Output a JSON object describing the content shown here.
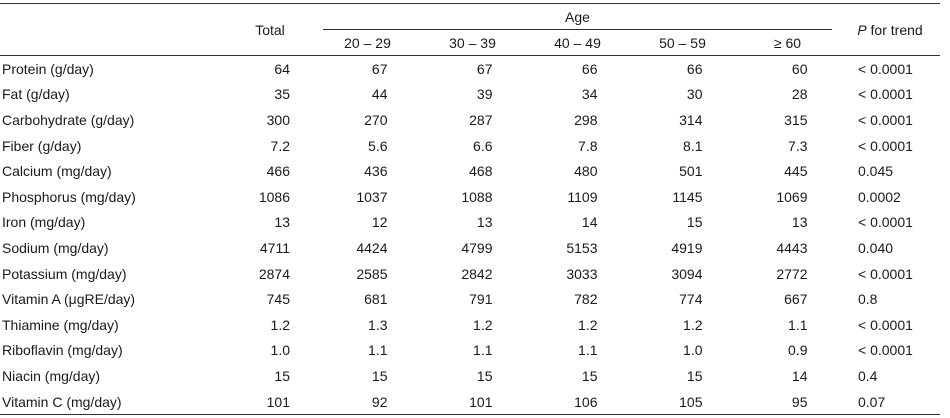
{
  "header": {
    "total": "Total",
    "age": "Age",
    "p": "P",
    "for_trend": " for trend",
    "age_groups": [
      "20 – 29",
      "30 – 39",
      "40 – 49",
      "50 – 59",
      "≥ 60"
    ]
  },
  "rows": [
    {
      "name": "Protein (g/day)",
      "total": "64",
      "a1": "67",
      "a2": "67",
      "a3": "66",
      "a4": "66",
      "a5": "60",
      "trend": "< 0.0001"
    },
    {
      "name": "Fat (g/day)",
      "total": "35",
      "a1": "44",
      "a2": "39",
      "a3": "34",
      "a4": "30",
      "a5": "28",
      "trend": "< 0.0001"
    },
    {
      "name": "Carbohydrate (g/day)",
      "total": "300",
      "a1": "270",
      "a2": "287",
      "a3": "298",
      "a4": "314",
      "a5": "315",
      "trend": "< 0.0001"
    },
    {
      "name": "Fiber (g/day)",
      "total": "7.2",
      "a1": "5.6",
      "a2": "6.6",
      "a3": "7.8",
      "a4": "8.1",
      "a5": "7.3",
      "trend": "< 0.0001"
    },
    {
      "name": "Calcium (mg/day)",
      "total": "466",
      "a1": "436",
      "a2": "468",
      "a3": "480",
      "a4": "501",
      "a5": "445",
      "trend": "0.045"
    },
    {
      "name": "Phosphorus (mg/day)",
      "total": "1086",
      "a1": "1037",
      "a2": "1088",
      "a3": "1109",
      "a4": "1145",
      "a5": "1069",
      "trend": "0.0002"
    },
    {
      "name": "Iron (mg/day)",
      "total": "13",
      "a1": "12",
      "a2": "13",
      "a3": "14",
      "a4": "15",
      "a5": "13",
      "trend": "< 0.0001"
    },
    {
      "name": "Sodium (mg/day)",
      "total": "4711",
      "a1": "4424",
      "a2": "4799",
      "a3": "5153",
      "a4": "4919",
      "a5": "4443",
      "trend": "0.040"
    },
    {
      "name": "Potassium (mg/day)",
      "total": "2874",
      "a1": "2585",
      "a2": "2842",
      "a3": "3033",
      "a4": "3094",
      "a5": "2772",
      "trend": "< 0.0001"
    },
    {
      "name": "Vitamin A (μgRE/day)",
      "total": "745",
      "a1": "681",
      "a2": "791",
      "a3": "782",
      "a4": "774",
      "a5": "667",
      "trend": "0.8"
    },
    {
      "name": "Thiamine (mg/day)",
      "total": "1.2",
      "a1": "1.3",
      "a2": "1.2",
      "a3": "1.2",
      "a4": "1.2",
      "a5": "1.1",
      "trend": "< 0.0001"
    },
    {
      "name": "Riboflavin (mg/day)",
      "total": "1.0",
      "a1": "1.1",
      "a2": "1.1",
      "a3": "1.1",
      "a4": "1.0",
      "a5": "0.9",
      "trend": "< 0.0001"
    },
    {
      "name": "Niacin (mg/day)",
      "total": "15",
      "a1": "15",
      "a2": "15",
      "a3": "15",
      "a4": "15",
      "a5": "14",
      "trend": "0.4"
    },
    {
      "name": "Vitamin C (mg/day)",
      "total": "101",
      "a1": "92",
      "a2": "101",
      "a3": "106",
      "a4": "105",
      "a5": "95",
      "trend": "0.07"
    }
  ]
}
